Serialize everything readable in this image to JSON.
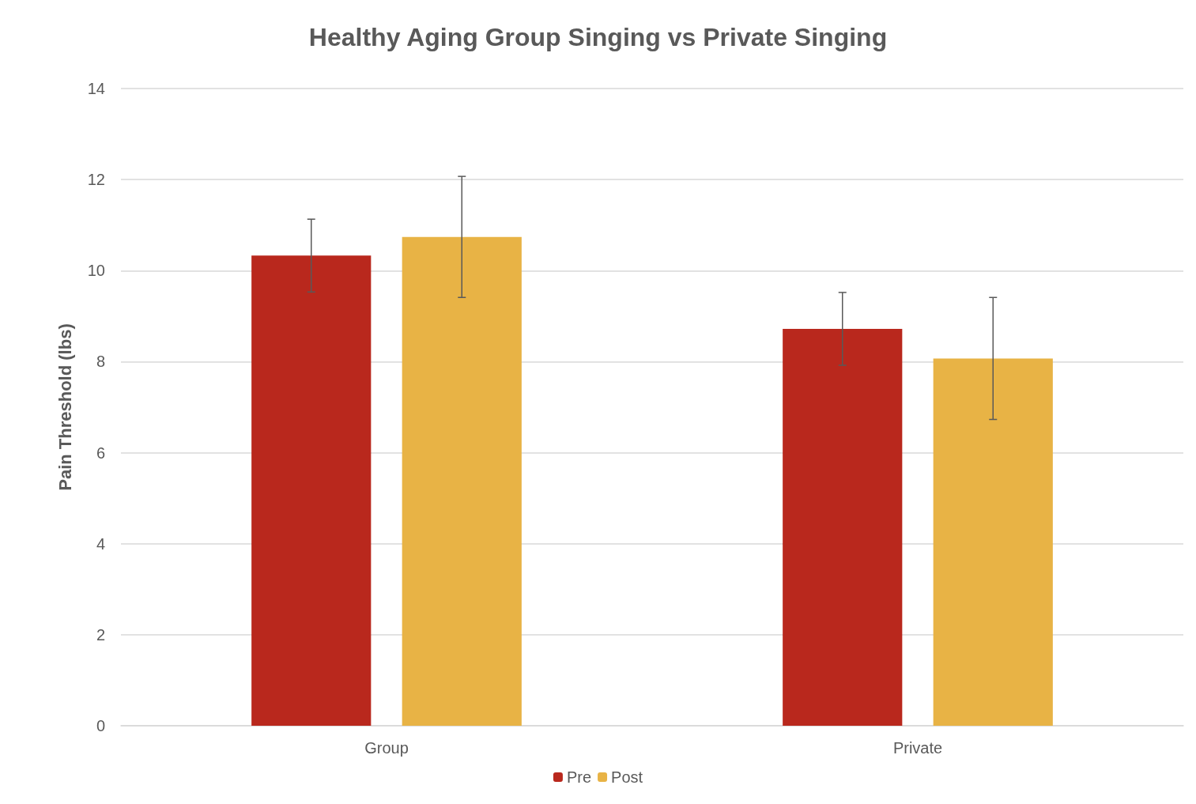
{
  "chart_data": {
    "type": "bar",
    "title": "Healthy Aging Group Singing vs Private Singing",
    "ylabel": "Pain Threshold (lbs)",
    "categories": [
      "Group",
      "Private"
    ],
    "series": [
      {
        "name": "Pre",
        "color": "#b9281d",
        "values": [
          10.33,
          8.72
        ],
        "errors": [
          0.8,
          0.8
        ]
      },
      {
        "name": "Post",
        "color": "#e8b345",
        "values": [
          10.74,
          8.07
        ],
        "errors": [
          1.33,
          1.34
        ]
      }
    ],
    "ylim": [
      0,
      14
    ],
    "yticks": [
      0,
      2,
      4,
      6,
      8,
      10,
      12,
      14
    ],
    "grid": "y",
    "legend": "bottom"
  }
}
